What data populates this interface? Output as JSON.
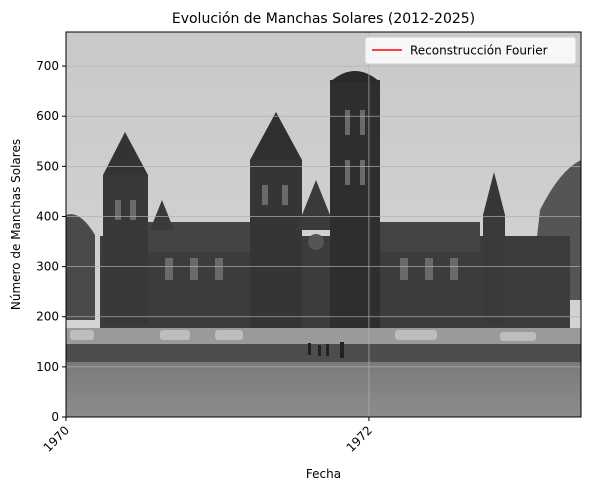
{
  "chart_data": {
    "type": "line",
    "title": "Evolución de Manchas Solares (2012-2025)",
    "xlabel": "Fecha",
    "ylabel": "Número de Manchas Solares",
    "xlim": [
      1970.0,
      1973.4
    ],
    "ylim": [
      768,
      0
    ],
    "y_inverted": true,
    "x_ticks": [
      {
        "value": 1970,
        "label": "1970"
      },
      {
        "value": 1972,
        "label": "1972"
      }
    ],
    "y_ticks": [
      {
        "value": 0,
        "label": "0"
      },
      {
        "value": 100,
        "label": "100"
      },
      {
        "value": 200,
        "label": "200"
      },
      {
        "value": 300,
        "label": "300"
      },
      {
        "value": 400,
        "label": "400"
      },
      {
        "value": 500,
        "label": "500"
      },
      {
        "value": 600,
        "label": "600"
      },
      {
        "value": 700,
        "label": "700"
      }
    ],
    "grid": true,
    "legend_placement": "top-right",
    "series": [
      {
        "name": "Reconstrucción Fourier",
        "color": "#ff0000",
        "x": [],
        "y": []
      }
    ],
    "background_image": "grayscale photograph of a castle-like building with towers"
  }
}
